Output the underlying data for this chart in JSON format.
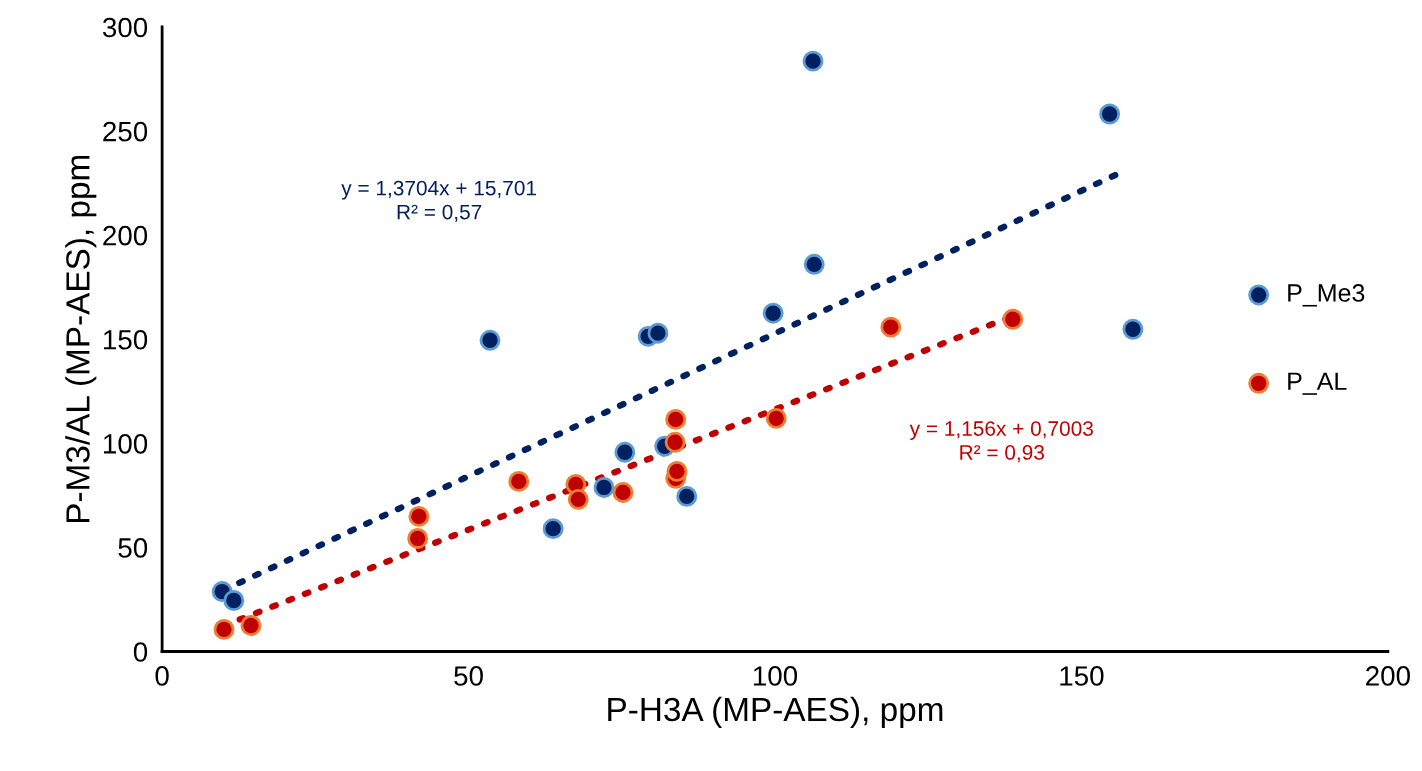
{
  "chart_data": {
    "type": "scatter",
    "xlabel": "P-H3A (MP-AES), ppm",
    "ylabel": "P-M3/AL (MP-AES), ppm",
    "xlim": [
      0,
      200
    ],
    "ylim": [
      0,
      300
    ],
    "xticks": [
      0,
      50,
      100,
      150,
      200
    ],
    "yticks": [
      0,
      50,
      100,
      150,
      200,
      250,
      300
    ],
    "grid": false,
    "legend": "right",
    "marker": "circle",
    "series": [
      {
        "name": "P_Me3",
        "color": "#002060",
        "x": [
          9.8,
          11.7,
          53.5,
          63.8,
          72.1,
          75.5,
          79.3,
          80.9,
          82,
          85.6,
          99.7,
          106.4,
          106.2,
          154.6,
          158.4
        ],
        "values": [
          28.8,
          24.5,
          149.5,
          59,
          78.8,
          95.7,
          151.4,
          152.9,
          98.6,
          74.5,
          162.5,
          186,
          283.6,
          258.2,
          154.8
        ]
      },
      {
        "name": "P_AL",
        "color": "#c00000",
        "x": [
          10.1,
          14.5,
          41.9,
          41.7,
          58.2,
          67.5,
          67.9,
          75.2,
          83.8,
          83.7,
          83.8,
          84,
          100.2,
          118.9,
          138.8
        ],
        "values": [
          10.6,
          12.5,
          64.9,
          54.3,
          81.7,
          80.3,
          73.1,
          76.4,
          111.5,
          100.5,
          83.2,
          86.5,
          112,
          155.8,
          159.6
        ]
      },
      {
        "type": "line",
        "marker": "none",
        "line_style": "dotted",
        "color": "#002060",
        "x": [
          10,
          157
        ],
        "values": [
          29.4,
          230.9
        ]
      },
      {
        "type": "line",
        "marker": "none",
        "line_style": "dotted",
        "color": "#c00000",
        "x": [
          10,
          138
        ],
        "values": [
          12.3,
          160.2
        ]
      }
    ],
    "annotations": [
      "y = 1,3704x + 15,701\nR² = 0,57",
      "y = 1,156x + 0,7003\nR² = 0,93"
    ]
  }
}
